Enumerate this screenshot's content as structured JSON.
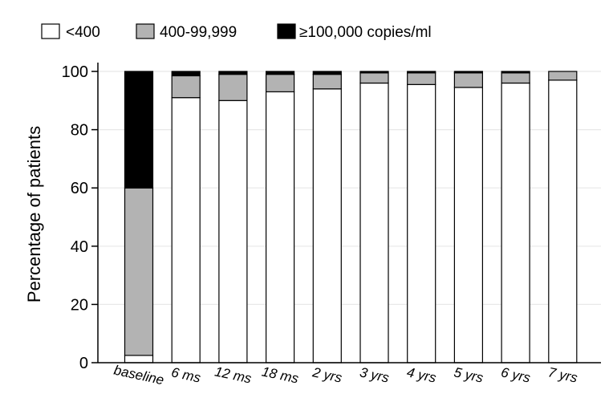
{
  "chart_data": {
    "type": "bar",
    "stacked": true,
    "categories": [
      "baseline",
      "6 ms",
      "12 ms",
      "18 ms",
      "2 yrs",
      "3 yrs",
      "4 yrs",
      "5 yrs",
      "6 yrs",
      "7 yrs"
    ],
    "series": [
      {
        "name": "<400",
        "color": "#ffffff",
        "values": [
          2.5,
          91,
          90,
          93,
          94,
          96,
          95.5,
          94.5,
          96,
          97
        ]
      },
      {
        "name": "400-99,999",
        "color": "#b3b3b3",
        "values": [
          57.5,
          7.5,
          9,
          6,
          5,
          3.5,
          4,
          5,
          3.5,
          3
        ]
      },
      {
        "name": "≥100,000 copies/ml",
        "color": "#000000",
        "values": [
          40,
          1.5,
          1,
          1,
          1,
          0.5,
          0.5,
          0.5,
          0.5,
          0
        ]
      }
    ],
    "xlabel": "",
    "ylabel": "Percentage of patients",
    "ylim": [
      0,
      100
    ],
    "yticks": [
      0,
      20,
      40,
      60,
      80,
      100
    ],
    "grid": true,
    "legend_position": "top"
  }
}
